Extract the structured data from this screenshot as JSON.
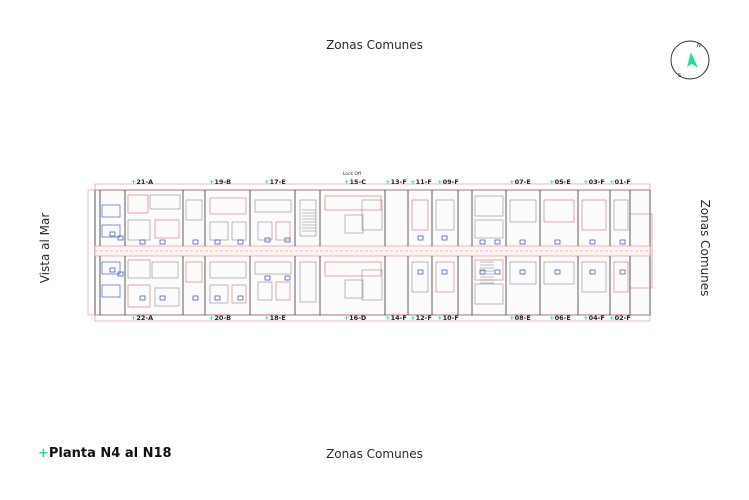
{
  "labels": {
    "top": "Zonas Comunes",
    "bottom": "Zonas Comunes",
    "left": "Vista al Mar",
    "right": "Zonas Comunes"
  },
  "plan_title": {
    "prefix": "+",
    "text": "Planta N4 al N18"
  },
  "compass": {
    "north": "N",
    "south": "S",
    "accent": "#2bd99a"
  },
  "lock_off_label": "Lock Off",
  "units_top": [
    {
      "prefix": "+",
      "label": "21-A"
    },
    {
      "prefix": "+",
      "label": "19-B"
    },
    {
      "prefix": "+",
      "label": "17-E"
    },
    {
      "prefix": "+",
      "label": "15-C"
    },
    {
      "prefix": "+",
      "label": "13-F"
    },
    {
      "prefix": "+",
      "label": "11-F"
    },
    {
      "prefix": "+",
      "label": "09-F"
    },
    {
      "prefix": "+",
      "label": "07-E"
    },
    {
      "prefix": "+",
      "label": "05-E"
    },
    {
      "prefix": "+",
      "label": "03-F"
    },
    {
      "prefix": "+",
      "label": "01-F"
    }
  ],
  "units_bottom": [
    {
      "prefix": "+",
      "label": "22-A"
    },
    {
      "prefix": "+",
      "label": "20-B"
    },
    {
      "prefix": "+",
      "label": "18-E"
    },
    {
      "prefix": "+",
      "label": "16-D"
    },
    {
      "prefix": "+",
      "label": "14-F"
    },
    {
      "prefix": "+",
      "label": "12-F"
    },
    {
      "prefix": "+",
      "label": "10-F"
    },
    {
      "prefix": "+",
      "label": "08-E"
    },
    {
      "prefix": "+",
      "label": "06-E"
    },
    {
      "prefix": "+",
      "label": "04-F"
    },
    {
      "prefix": "+",
      "label": "02-F"
    }
  ],
  "colors": {
    "wall": "#4a4a4a",
    "wall_red": "#d9534f",
    "furniture_blue": "#3050c8",
    "accent": "#2bd99a"
  }
}
